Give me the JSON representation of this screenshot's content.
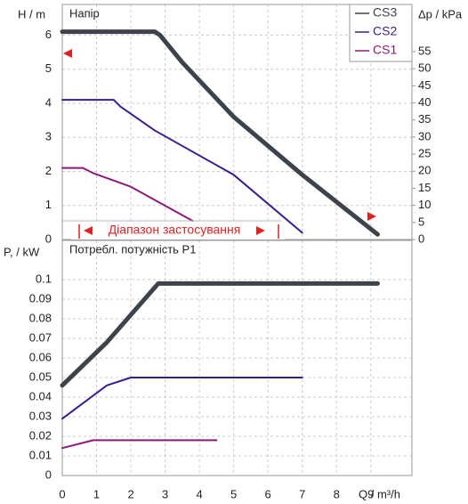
{
  "chart_data": [
    {
      "type": "line",
      "title": "Напір",
      "ylabel": "H / m",
      "y2label": "Δp / kPa",
      "annotation": "Діапазон застосування",
      "xlim": [
        0,
        10.2
      ],
      "xticks": [
        0,
        1,
        2,
        3,
        4,
        5,
        6,
        7,
        8,
        9
      ],
      "ylim": [
        0,
        6.9
      ],
      "yticks": [
        0,
        1,
        2,
        3,
        4,
        5,
        6
      ],
      "y2lim": [
        0,
        68.8
      ],
      "y2ticks": [
        0,
        5,
        10,
        15,
        20,
        25,
        30,
        35,
        40,
        45,
        50,
        55
      ],
      "grid": true,
      "legend": "upper right",
      "series": [
        {
          "name": "CS3",
          "color": "#3d434a",
          "x": [
            0,
            2.7,
            2.85,
            3.5,
            5,
            7,
            9.2
          ],
          "values": [
            6.1,
            6.1,
            6.0,
            5.2,
            3.6,
            1.9,
            0.15
          ]
        },
        {
          "name": "CS2",
          "color": "#3a1e8a",
          "x": [
            0,
            1.5,
            1.7,
            2.7,
            5,
            7
          ],
          "values": [
            4.1,
            4.1,
            3.9,
            3.2,
            1.9,
            0.2
          ]
        },
        {
          "name": "CS1",
          "color": "#8a1a77",
          "x": [
            0,
            0.6,
            0.9,
            2,
            3.8
          ],
          "values": [
            2.1,
            2.1,
            1.95,
            1.55,
            0.55
          ]
        }
      ]
    },
    {
      "type": "line",
      "title": "Потребл. потужність P1",
      "ylabel": "P, / kW",
      "xlabel": "Q / m³/h",
      "xlim": [
        0,
        10.2
      ],
      "xticks": [
        0,
        1,
        2,
        3,
        4,
        5,
        6,
        7,
        8,
        9
      ],
      "ylim": [
        0,
        0.12
      ],
      "yticks": [
        0,
        0.01,
        0.02,
        0.03,
        0.04,
        0.05,
        0.06,
        0.07,
        0.08,
        0.09,
        0.1
      ],
      "grid": true,
      "series": [
        {
          "color": "#3d434a",
          "x": [
            0,
            1.3,
            2.8,
            9.2
          ],
          "values": [
            0.046,
            0.068,
            0.098,
            0.098
          ]
        },
        {
          "color": "#3a1e8a",
          "x": [
            0,
            1.3,
            2,
            7
          ],
          "values": [
            0.029,
            0.046,
            0.05,
            0.05
          ]
        },
        {
          "color": "#8a1a77",
          "x": [
            0,
            0.9,
            4.5
          ],
          "values": [
            0.014,
            0.018,
            0.018
          ]
        }
      ]
    }
  ]
}
